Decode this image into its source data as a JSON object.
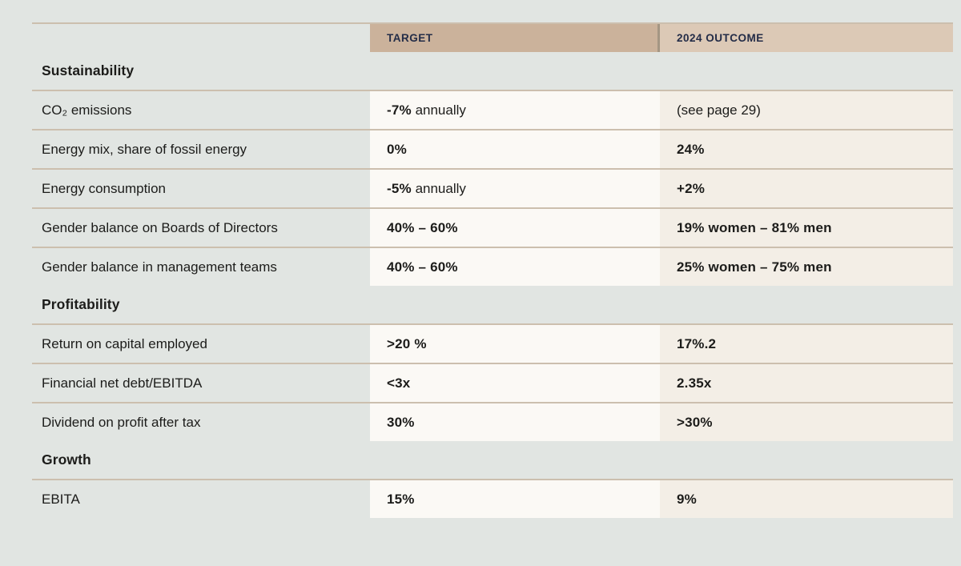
{
  "table": {
    "headers": {
      "target": "TARGET",
      "outcome": "2024 OUTCOME"
    },
    "rows": [
      {
        "type": "section",
        "label": "Sustainability"
      },
      {
        "type": "data",
        "label": "CO₂ emissions",
        "target": {
          "bold": "-7%",
          "regular": " annually"
        },
        "outcome": {
          "bold": "",
          "regular": "(see page 29)"
        }
      },
      {
        "type": "data",
        "label": "Energy mix, share of fossil energy",
        "target": {
          "bold": "0%",
          "regular": ""
        },
        "outcome": {
          "bold": "24%",
          "regular": ""
        }
      },
      {
        "type": "data",
        "label": "Energy consumption",
        "target": {
          "bold": "-5%",
          "regular": " annually"
        },
        "outcome": {
          "bold": "+2%",
          "regular": ""
        }
      },
      {
        "type": "data",
        "label": "Gender balance on Boards of Directors",
        "target": {
          "bold": "40% – 60%",
          "regular": ""
        },
        "outcome": {
          "bold": "19% women – 81% men",
          "regular": ""
        }
      },
      {
        "type": "data",
        "label": "Gender balance in management teams",
        "target": {
          "bold": "40% – 60%",
          "regular": ""
        },
        "outcome": {
          "bold": "25% women – 75% men",
          "regular": ""
        }
      },
      {
        "type": "section",
        "label": "Profitability"
      },
      {
        "type": "data",
        "label": "Return on capital employed",
        "target": {
          "bold": ">20 %",
          "regular": ""
        },
        "outcome": {
          "bold": "17%.2",
          "regular": ""
        }
      },
      {
        "type": "data",
        "label": "Financial net debt/EBITDA",
        "target": {
          "bold": "<3x",
          "regular": ""
        },
        "outcome": {
          "bold": "2.35x",
          "regular": ""
        }
      },
      {
        "type": "data",
        "label": "Dividend on profit after tax",
        "target": {
          "bold": "30%",
          "regular": ""
        },
        "outcome": {
          "bold": ">30%",
          "regular": ""
        }
      },
      {
        "type": "section",
        "label": "Growth"
      },
      {
        "type": "data",
        "label": "EBITA",
        "target": {
          "bold": "15%",
          "regular": ""
        },
        "outcome": {
          "bold": "9%",
          "regular": ""
        }
      }
    ]
  },
  "colors": {
    "page_bg": "#e1e5e2",
    "target_header_bg": "#cbb29b",
    "outcome_header_bg": "#dcc9b6",
    "header_divider": "#a49683",
    "header_text": "#232c47",
    "target_cell_bg": "#fbf9f5",
    "outcome_cell_bg": "#f3eee6",
    "separator_line": "#ccbfae",
    "body_text": "#1c1c1a"
  }
}
